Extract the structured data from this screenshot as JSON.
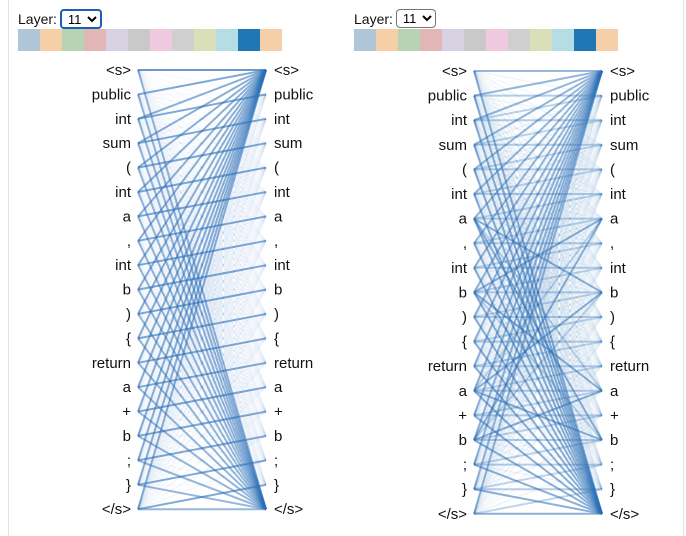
{
  "panels": [
    {
      "layer_label": "Layer:",
      "layer_value": "11",
      "layer_options": [
        "11"
      ],
      "focused": true
    },
    {
      "layer_label": "Layer:",
      "layer_value": "11",
      "layer_options": [
        "11"
      ],
      "focused": false
    }
  ],
  "head_colors": [
    "#aec6d8",
    "#f4cfa8",
    "#b6d3b3",
    "#e3b6b6",
    "#d7d2e2",
    "#c9c9c9",
    "#eec9df",
    "#cfcfcf",
    "#d9dfb6",
    "#b5dde6",
    "#1f77b4",
    "#f4cfa8"
  ],
  "selected_head": 10,
  "tokens": [
    "<s>",
    "public",
    "int",
    "sum",
    "(",
    "int",
    "a",
    ",",
    "int",
    "b",
    ")",
    "{",
    "return",
    "a",
    "+",
    "b",
    ";",
    "}",
    "</s>"
  ],
  "attention_color": "#2b6fb7"
}
